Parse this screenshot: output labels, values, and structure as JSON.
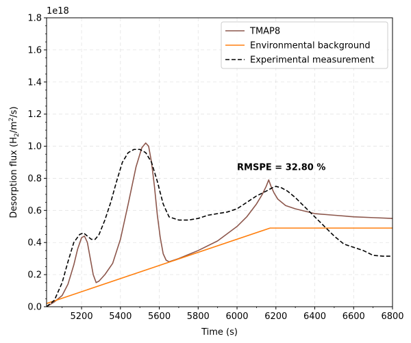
{
  "chart_data": {
    "type": "line",
    "xlabel": "Time (s)",
    "ylabel_prefix": "Desorption flux (H",
    "ylabel_sub1": "2",
    "ylabel_mid": "/m",
    "ylabel_sup": "2",
    "ylabel_suffix": "/s)",
    "y_offset_text": "1e18",
    "xlim": [
      5020,
      6800
    ],
    "ylim": [
      0,
      1.8
    ],
    "xticks": [
      5200,
      5400,
      5600,
      5800,
      6000,
      6200,
      6400,
      6600,
      6800
    ],
    "yticks": [
      0.0,
      0.2,
      0.4,
      0.6,
      0.8,
      1.0,
      1.2,
      1.4,
      1.6,
      1.8
    ],
    "ytick_labels": [
      "0.0",
      "0.2",
      "0.4",
      "0.6",
      "0.8",
      "1.0",
      "1.2",
      "1.4",
      "1.6",
      "1.8"
    ],
    "grid": true,
    "legend_position": "top-right",
    "annotation": {
      "text": "RMSPE = 32.80 %",
      "x": 6000,
      "y": 0.85
    },
    "series": [
      {
        "name": "TMAP8",
        "color": "#8c564b",
        "style": "solid",
        "x": [
          5020,
          5060,
          5100,
          5130,
          5160,
          5180,
          5200,
          5215,
          5230,
          5245,
          5260,
          5275,
          5290,
          5320,
          5360,
          5400,
          5440,
          5480,
          5510,
          5530,
          5545,
          5560,
          5575,
          5590,
          5605,
          5620,
          5635,
          5650,
          5700,
          5800,
          5900,
          6000,
          6050,
          6100,
          6130,
          6150,
          6163,
          6175,
          6190,
          6210,
          6250,
          6300,
          6400,
          6500,
          6600,
          6700,
          6800
        ],
        "y": [
          0.0,
          0.03,
          0.07,
          0.14,
          0.26,
          0.36,
          0.43,
          0.44,
          0.4,
          0.3,
          0.2,
          0.15,
          0.16,
          0.2,
          0.27,
          0.42,
          0.64,
          0.87,
          0.99,
          1.02,
          1.0,
          0.9,
          0.75,
          0.57,
          0.43,
          0.33,
          0.29,
          0.28,
          0.3,
          0.35,
          0.41,
          0.5,
          0.56,
          0.64,
          0.7,
          0.75,
          0.79,
          0.75,
          0.71,
          0.67,
          0.63,
          0.61,
          0.58,
          0.57,
          0.56,
          0.555,
          0.55
        ]
      },
      {
        "name": "Environmental background",
        "color": "#ff7f0e",
        "style": "solid",
        "x": [
          5020,
          6170,
          6800
        ],
        "y": [
          0.02,
          0.49,
          0.49
        ]
      },
      {
        "name": "Experimental measurement",
        "color": "#000000",
        "style": "dashed",
        "x": [
          5020,
          5060,
          5100,
          5130,
          5160,
          5190,
          5210,
          5230,
          5250,
          5270,
          5290,
          5320,
          5350,
          5380,
          5410,
          5440,
          5470,
          5500,
          5530,
          5560,
          5590,
          5620,
          5650,
          5700,
          5750,
          5800,
          5850,
          5900,
          5950,
          6000,
          6050,
          6100,
          6150,
          6180,
          6200,
          6230,
          6260,
          6300,
          6350,
          6400,
          6450,
          6500,
          6550,
          6600,
          6650,
          6700,
          6750,
          6800
        ],
        "y": [
          0.0,
          0.04,
          0.15,
          0.28,
          0.4,
          0.45,
          0.46,
          0.44,
          0.42,
          0.42,
          0.45,
          0.54,
          0.65,
          0.78,
          0.9,
          0.96,
          0.98,
          0.98,
          0.96,
          0.9,
          0.78,
          0.64,
          0.56,
          0.54,
          0.54,
          0.55,
          0.57,
          0.58,
          0.59,
          0.61,
          0.65,
          0.69,
          0.72,
          0.74,
          0.75,
          0.74,
          0.72,
          0.68,
          0.62,
          0.56,
          0.5,
          0.44,
          0.39,
          0.37,
          0.35,
          0.32,
          0.315,
          0.315
        ]
      }
    ]
  }
}
